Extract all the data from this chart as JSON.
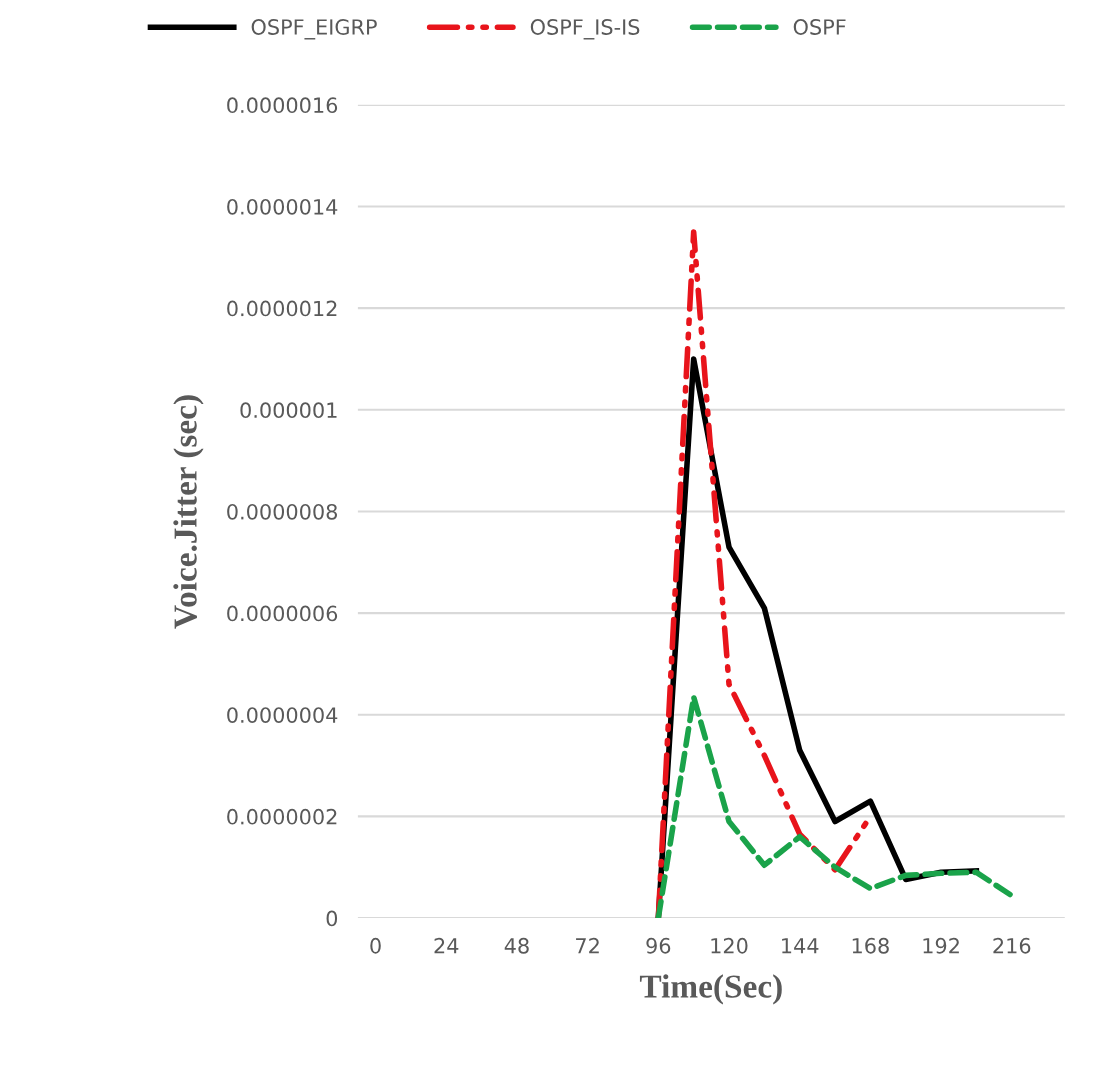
{
  "chart_data": {
    "type": "line",
    "xlabel": "Time(Sec)",
    "ylabel": "Voice.Jitter (sec)",
    "categories": [
      "0",
      null,
      "24",
      null,
      "48",
      null,
      "72",
      null,
      "96",
      null,
      "120",
      null,
      "144",
      null,
      "168",
      null,
      "192",
      null,
      "216",
      null
    ],
    "series": [
      {
        "name": "OSPF_EIGRP",
        "color": "#000000",
        "line_style": "solid",
        "values": [
          null,
          null,
          null,
          null,
          null,
          null,
          null,
          null,
          0,
          1.1e-06,
          7.3e-07,
          6.1e-07,
          3.3e-07,
          1.9e-07,
          2.3e-07,
          7.6e-08,
          9e-08,
          9.3e-08,
          null,
          null
        ]
      },
      {
        "name": "OSPF_IS-IS",
        "color": "#e8141b",
        "line_style": "dashdot",
        "values": [
          null,
          null,
          null,
          null,
          null,
          null,
          null,
          null,
          0,
          1.35e-06,
          4.6e-07,
          3.2e-07,
          1.65e-07,
          9.5e-08,
          2e-07,
          null,
          null,
          null,
          null,
          null
        ]
      },
      {
        "name": "OSPF",
        "color": "#1aa34a",
        "line_style": "dashed",
        "values": [
          null,
          null,
          null,
          null,
          null,
          null,
          null,
          null,
          0,
          4.35e-07,
          1.9e-07,
          1.04e-07,
          1.6e-07,
          1e-07,
          5.8e-08,
          8.4e-08,
          8.8e-08,
          9e-08,
          4.4e-08,
          null
        ]
      }
    ],
    "ylim": [
      0,
      1.6e-06
    ],
    "yticks": [
      {
        "value": 0,
        "label": "0"
      },
      {
        "value": 2e-07,
        "label": "0.0000002"
      },
      {
        "value": 4e-07,
        "label": "0.0000004"
      },
      {
        "value": 6e-07,
        "label": "0.0000006"
      },
      {
        "value": 8e-07,
        "label": "0.0000008"
      },
      {
        "value": 1e-06,
        "label": "0.000001"
      },
      {
        "value": 1.2e-06,
        "label": "0.0000012"
      },
      {
        "value": 1.4e-06,
        "label": "0.0000014"
      },
      {
        "value": 1.6e-06,
        "label": "0.0000016"
      }
    ],
    "grid": "y",
    "legend": "top",
    "marker": "none"
  }
}
